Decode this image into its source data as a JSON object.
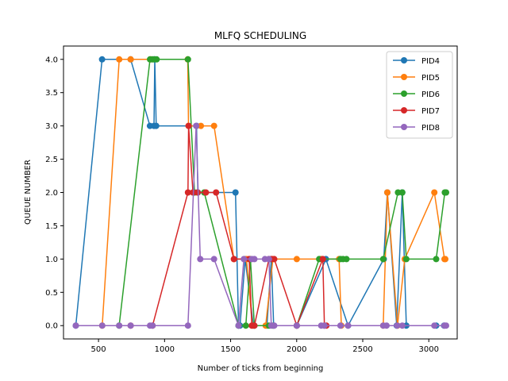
{
  "chart_data": {
    "type": "line",
    "title": "MLFQ SCHEDULING",
    "xlabel": "Number of ticks from beginning",
    "ylabel": "QUEUE NUMBER",
    "xlim": [
      235,
      3215
    ],
    "ylim": [
      -0.2,
      4.2
    ],
    "xticks": [
      500,
      1000,
      1500,
      2000,
      2500,
      3000
    ],
    "xtick_labels": [
      "500",
      "1000",
      "1500",
      "2000",
      "2500",
      "3000"
    ],
    "yticks": [
      0.0,
      0.5,
      1.0,
      1.5,
      2.0,
      2.5,
      3.0,
      3.5,
      4.0
    ],
    "ytick_labels": [
      "0.0",
      "0.5",
      "1.0",
      "1.5",
      "2.0",
      "2.5",
      "3.0",
      "3.5",
      "4.0"
    ],
    "grid": false,
    "legend_position": "top-right",
    "series": [
      {
        "name": "PID4",
        "color": "#1f77b4",
        "points": [
          [
            328,
            0
          ],
          [
            527,
            4
          ],
          [
            743,
            4
          ],
          [
            889,
            3
          ],
          [
            920,
            3
          ],
          [
            926,
            4
          ],
          [
            937,
            3
          ],
          [
            1242,
            3
          ],
          [
            1252,
            2
          ],
          [
            1537,
            2
          ],
          [
            1560,
            0
          ],
          [
            1571,
            0
          ],
          [
            1610,
            1
          ],
          [
            1672,
            0
          ],
          [
            1775,
            0
          ],
          [
            1808,
            1
          ],
          [
            1826,
            0
          ],
          [
            2001,
            0
          ],
          [
            2221,
            1
          ],
          [
            2389,
            0
          ],
          [
            2659,
            1
          ],
          [
            2686,
            2
          ],
          [
            2757,
            0
          ],
          [
            2799,
            2
          ],
          [
            2830,
            0
          ],
          [
            3056,
            0
          ],
          [
            3116,
            0
          ]
        ]
      },
      {
        "name": "PID5",
        "color": "#ff7f0e",
        "points": [
          [
            528,
            0
          ],
          [
            657,
            4
          ],
          [
            743,
            4
          ],
          [
            895,
            4
          ],
          [
            1175,
            4
          ],
          [
            1181,
            3
          ],
          [
            1275,
            3
          ],
          [
            1375,
            3
          ],
          [
            1525,
            1
          ],
          [
            1620,
            1
          ],
          [
            1665,
            0
          ],
          [
            1765,
            0
          ],
          [
            1820,
            1
          ],
          [
            2001,
            1
          ],
          [
            2186,
            1
          ],
          [
            2321,
            1
          ],
          [
            2338,
            0
          ],
          [
            2655,
            0
          ],
          [
            2686,
            2
          ],
          [
            2763,
            0
          ],
          [
            2818,
            1
          ],
          [
            3042,
            2
          ],
          [
            3119,
            1
          ],
          [
            3125,
            1
          ]
        ]
      },
      {
        "name": "PID6",
        "color": "#2ca02c",
        "points": [
          [
            656,
            0
          ],
          [
            890,
            4
          ],
          [
            909,
            4
          ],
          [
            922,
            4
          ],
          [
            940,
            4
          ],
          [
            1177,
            4
          ],
          [
            1227,
            2
          ],
          [
            1300,
            2
          ],
          [
            1560,
            0
          ],
          [
            1615,
            0
          ],
          [
            1650,
            1
          ],
          [
            1680,
            0
          ],
          [
            1790,
            0
          ],
          [
            1820,
            0
          ],
          [
            2001,
            0
          ],
          [
            2170,
            1
          ],
          [
            2331,
            1
          ],
          [
            2351,
            1
          ],
          [
            2377,
            1
          ],
          [
            2655,
            1
          ],
          [
            2767,
            2
          ],
          [
            2799,
            2
          ],
          [
            2830,
            1
          ],
          [
            3056,
            1
          ],
          [
            3121,
            2
          ],
          [
            3131,
            2
          ]
        ]
      },
      {
        "name": "PID7",
        "color": "#d62728",
        "points": [
          [
            743,
            0
          ],
          [
            909,
            0
          ],
          [
            1177,
            2
          ],
          [
            1182,
            3
          ],
          [
            1215,
            2
          ],
          [
            1250,
            2
          ],
          [
            1313,
            2
          ],
          [
            1390,
            2
          ],
          [
            1525,
            1
          ],
          [
            1640,
            1
          ],
          [
            1660,
            0
          ],
          [
            1680,
            0
          ],
          [
            1790,
            1
          ],
          [
            1810,
            1
          ],
          [
            1830,
            1
          ],
          [
            2001,
            0
          ],
          [
            2198,
            1
          ],
          [
            2210,
            0
          ],
          [
            2225,
            0
          ]
        ]
      },
      {
        "name": "PID8",
        "color": "#9467bd",
        "points": [
          [
            328,
            0
          ],
          [
            528,
            0
          ],
          [
            657,
            0
          ],
          [
            743,
            0
          ],
          [
            890,
            0
          ],
          [
            909,
            0
          ],
          [
            1177,
            0
          ],
          [
            1239,
            3
          ],
          [
            1270,
            1
          ],
          [
            1375,
            1
          ],
          [
            1560,
            0
          ],
          [
            1600,
            1
          ],
          [
            1660,
            1
          ],
          [
            1680,
            1
          ],
          [
            1760,
            1
          ],
          [
            1790,
            1
          ],
          [
            1808,
            0
          ],
          [
            1830,
            0
          ],
          [
            2001,
            0
          ],
          [
            2186,
            0
          ],
          [
            2210,
            0
          ],
          [
            2331,
            0
          ],
          [
            2389,
            0
          ],
          [
            2655,
            0
          ],
          [
            2680,
            0
          ],
          [
            2760,
            0
          ],
          [
            2799,
            0
          ],
          [
            3042,
            0
          ],
          [
            3119,
            0
          ],
          [
            3131,
            0
          ]
        ]
      }
    ]
  }
}
